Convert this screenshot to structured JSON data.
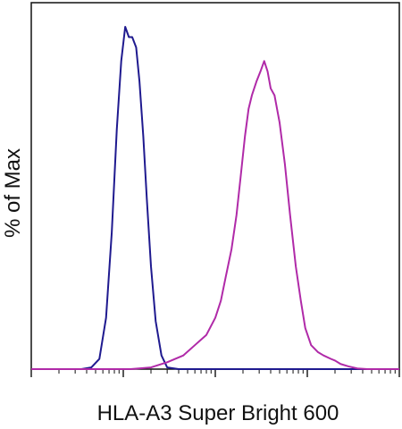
{
  "chart_data": {
    "type": "line",
    "title": "",
    "xlabel": "HLA-A3 Super Bright 600",
    "ylabel": "% of Max",
    "x_scale": "log",
    "xlim": [
      10,
      100000
    ],
    "ylim": [
      0,
      100
    ],
    "grid": false,
    "legend": "none",
    "series": [
      {
        "color": "#1f1a8f",
        "points": [
          [
            10,
            0
          ],
          [
            35,
            0
          ],
          [
            45,
            0.5
          ],
          [
            55,
            3
          ],
          [
            65,
            15
          ],
          [
            75,
            40
          ],
          [
            85,
            70
          ],
          [
            95,
            90
          ],
          [
            105,
            100
          ],
          [
            115,
            97
          ],
          [
            125,
            97
          ],
          [
            138,
            94
          ],
          [
            150,
            84
          ],
          [
            165,
            68
          ],
          [
            180,
            50
          ],
          [
            200,
            30
          ],
          [
            225,
            14
          ],
          [
            260,
            4
          ],
          [
            300,
            0.5
          ],
          [
            400,
            0
          ],
          [
            100000,
            0
          ]
        ]
      },
      {
        "color": "#b02aa8",
        "points": [
          [
            10,
            0
          ],
          [
            120,
            0
          ],
          [
            200,
            0.5
          ],
          [
            300,
            2
          ],
          [
            450,
            4
          ],
          [
            600,
            7
          ],
          [
            800,
            10
          ],
          [
            1000,
            15
          ],
          [
            1150,
            20
          ],
          [
            1300,
            27
          ],
          [
            1500,
            35
          ],
          [
            1700,
            45
          ],
          [
            1900,
            57
          ],
          [
            2100,
            68
          ],
          [
            2300,
            76
          ],
          [
            2500,
            80
          ],
          [
            2800,
            84
          ],
          [
            3100,
            87
          ],
          [
            3400,
            90
          ],
          [
            3700,
            87
          ],
          [
            4000,
            82
          ],
          [
            4400,
            80
          ],
          [
            5000,
            72
          ],
          [
            5700,
            60
          ],
          [
            6500,
            45
          ],
          [
            7500,
            30
          ],
          [
            8500,
            20
          ],
          [
            9500,
            12
          ],
          [
            11000,
            7
          ],
          [
            13000,
            5
          ],
          [
            15000,
            4
          ],
          [
            18000,
            3
          ],
          [
            20000,
            2.5
          ],
          [
            23000,
            1.5
          ],
          [
            28000,
            0.8
          ],
          [
            35000,
            0.2
          ],
          [
            45000,
            0
          ],
          [
            100000,
            0
          ]
        ]
      }
    ]
  }
}
